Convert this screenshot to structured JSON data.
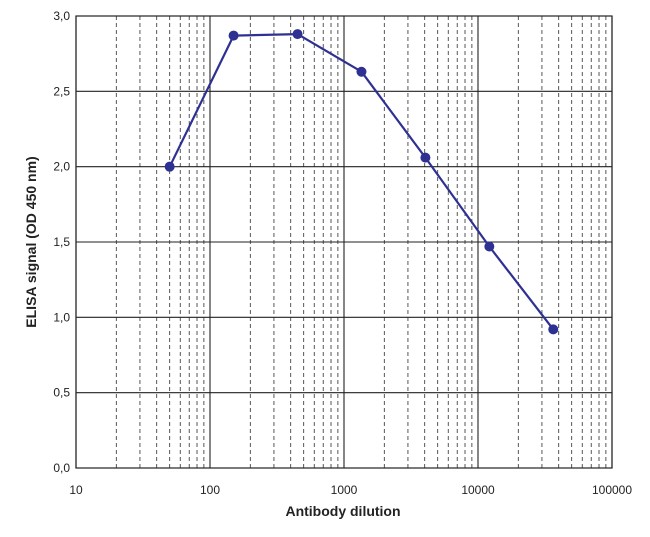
{
  "chart_data": {
    "type": "line",
    "xlabel": "Antibody dilution",
    "ylabel": "ELISA signal (OD 450 nm)",
    "x_scale": "log",
    "xlim": [
      10,
      100000
    ],
    "ylim": [
      0,
      3
    ],
    "x_ticks": [
      10,
      100,
      1000,
      10000,
      100000
    ],
    "x_tick_labels": [
      "10",
      "100",
      "1000",
      "10000",
      "100000"
    ],
    "y_ticks": [
      0,
      0.5,
      1,
      1.5,
      2,
      2.5,
      3
    ],
    "y_tick_labels": [
      "0,0",
      "0,5",
      "1,0",
      "1,5",
      "2,0",
      "2,5",
      "3,0"
    ],
    "grid": true,
    "minor_grid": "dashed",
    "series": [
      {
        "color": "#2e3192",
        "x": [
          50,
          150,
          450,
          1350,
          4050,
          12150,
          36450
        ],
        "y": [
          2.0,
          2.87,
          2.88,
          2.63,
          2.06,
          1.47,
          0.92
        ]
      }
    ]
  }
}
